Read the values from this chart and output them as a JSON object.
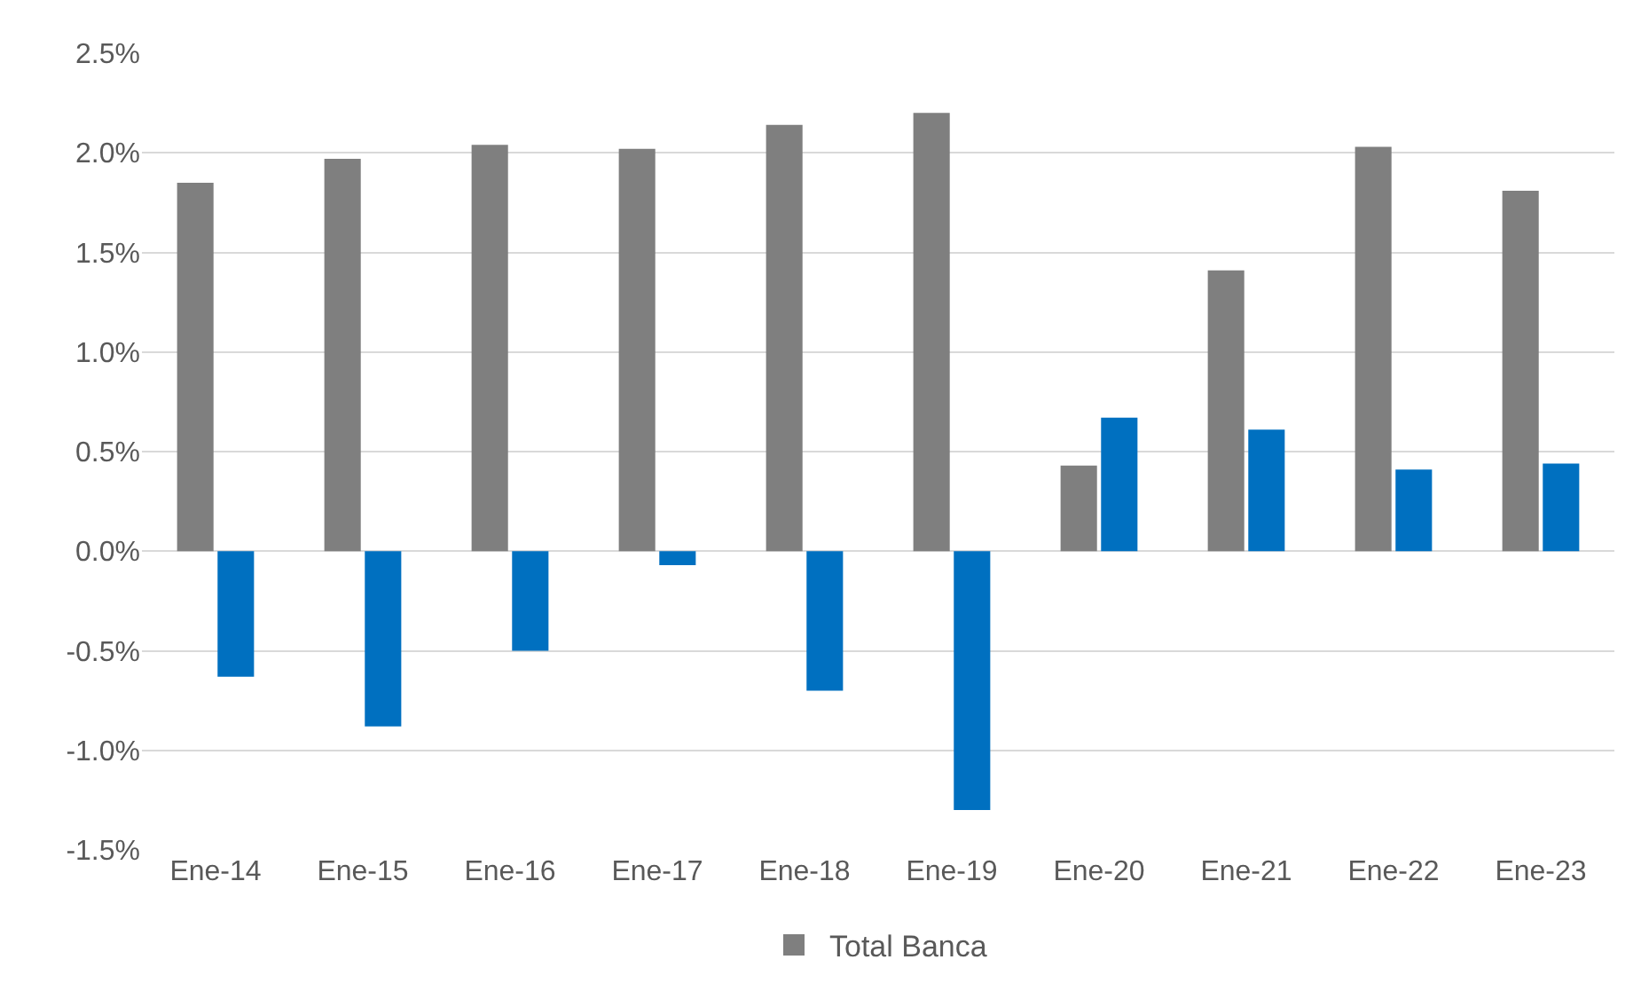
{
  "chart_data": {
    "type": "bar",
    "categories": [
      "Ene-14",
      "Ene-15",
      "Ene-16",
      "Ene-17",
      "Ene-18",
      "Ene-19",
      "Ene-20",
      "Ene-21",
      "Ene-22",
      "Ene-23"
    ],
    "series": [
      {
        "name": "Total Banca",
        "color": "#7f7f7f",
        "values": [
          1.85,
          1.97,
          2.04,
          2.02,
          2.14,
          2.2,
          0.43,
          1.41,
          2.03,
          1.81
        ]
      },
      {
        "color": "#0070c0",
        "values": [
          -0.63,
          -0.88,
          -0.5,
          -0.07,
          -0.7,
          -1.3,
          0.67,
          0.61,
          0.41,
          0.44
        ]
      }
    ],
    "ylim": [
      -1.5,
      2.5
    ],
    "yticks": [
      {
        "value": -1.5,
        "label": "-1.5%"
      },
      {
        "value": -1,
        "label": "-1.0%"
      },
      {
        "value": -0.5,
        "label": "-0.5%"
      },
      {
        "value": 0,
        "label": "0.0%"
      },
      {
        "value": 0.5,
        "label": "0.5%"
      },
      {
        "value": 1,
        "label": "1.0%"
      },
      {
        "value": 1.5,
        "label": "1.5%"
      },
      {
        "value": 2,
        "label": "2.0%"
      },
      {
        "value": 2.5,
        "label": "2.5%"
      }
    ],
    "grid": "y",
    "legend": "bottom"
  }
}
